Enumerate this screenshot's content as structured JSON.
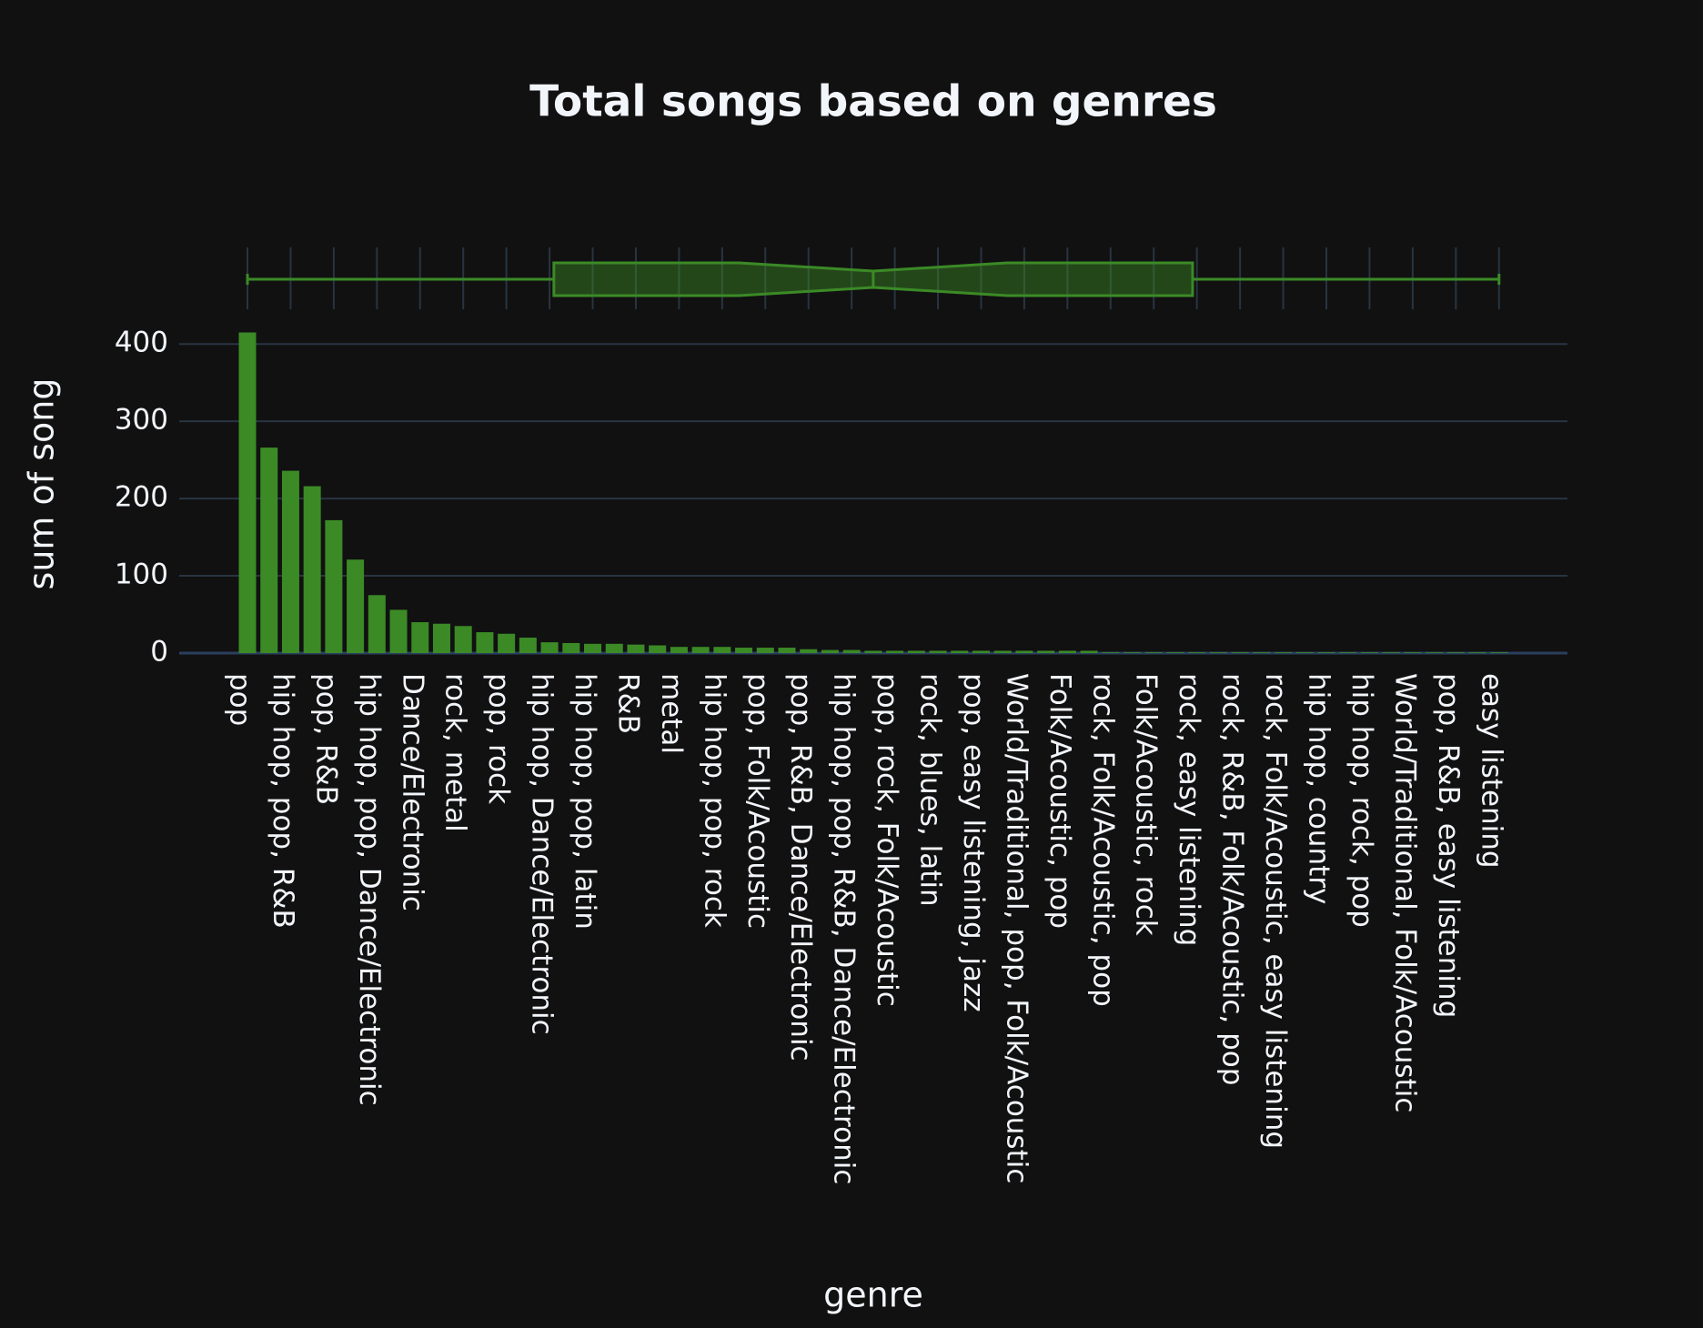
{
  "chart_data": {
    "type": "bar",
    "title": "Total songs based on genres",
    "x_label": "genre",
    "y_label": "sum of song",
    "categories": [
      "pop",
      null,
      "hip hop, pop, R&B",
      null,
      "pop, R&B",
      null,
      "hip hop, pop, Dance/Electronic",
      null,
      "Dance/Electronic",
      null,
      "rock, metal",
      null,
      "pop, rock",
      null,
      "hip hop, Dance/Electronic",
      null,
      "hip hop, pop, latin",
      null,
      "R&B",
      null,
      "metal",
      null,
      "hip hop, pop, rock",
      null,
      "pop, Folk/Acoustic",
      null,
      "pop, R&B, Dance/Electronic",
      null,
      "hip hop, pop, R&B, Dance/Electronic",
      null,
      "pop, rock, Folk/Acoustic",
      null,
      "rock, blues, latin",
      null,
      "pop, easy listening, jazz",
      null,
      "World/Traditional, pop, Folk/Acoustic",
      null,
      "Folk/Acoustic, pop",
      null,
      "rock, Folk/Acoustic, pop",
      null,
      "Folk/Acoustic, rock",
      null,
      "rock, easy listening",
      null,
      "rock, R&B, Folk/Acoustic, pop",
      null,
      "rock, Folk/Acoustic, easy listening",
      null,
      "hip hop, country",
      null,
      "hip hop, rock, pop",
      null,
      "World/Traditional, Folk/Acoustic",
      null,
      "pop, R&B, easy listening",
      null,
      "easy listening"
    ],
    "values": [
      415,
      266,
      236,
      216,
      172,
      121,
      75,
      56,
      40,
      38,
      35,
      27,
      25,
      20,
      14,
      13,
      12,
      12,
      11,
      10,
      8,
      8,
      8,
      7,
      7,
      7,
      5,
      4,
      4,
      3,
      3,
      3,
      3,
      3,
      3,
      3,
      3,
      3,
      3,
      3,
      1,
      1,
      1,
      1,
      1,
      1,
      1,
      1,
      1,
      1,
      1,
      1,
      1,
      1,
      1,
      1,
      1,
      1,
      1
    ],
    "color": "#3b8a26",
    "ylim": [
      0,
      425
    ],
    "yticks": [
      0,
      100,
      200,
      300,
      400
    ],
    "grid": true,
    "box": {
      "min": 0,
      "q1": 14.2,
      "median": 29,
      "q3": 43.8,
      "max": 58
    }
  }
}
